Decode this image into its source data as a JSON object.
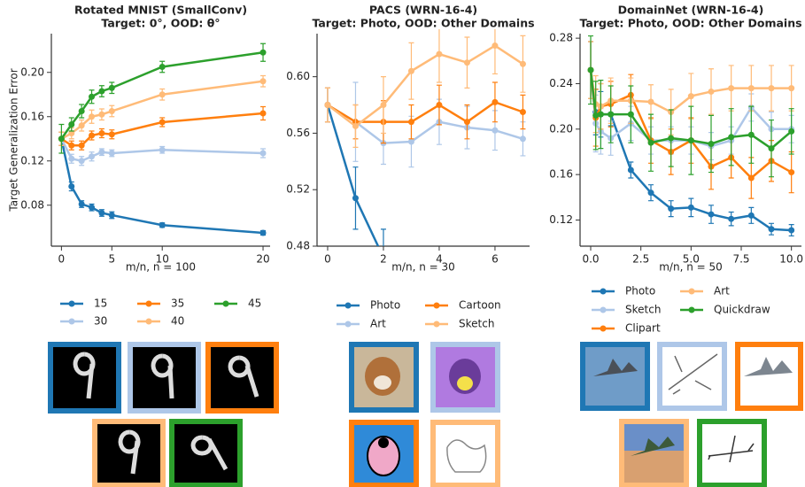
{
  "chart_data": [
    {
      "type": "line",
      "title": "Rotated MNIST (SmallConv)",
      "subtitle": "Target: 0°, OOD: θ°",
      "xlabel": "m/n, n = 100",
      "ylabel": "Target Generalization Error",
      "x": [
        0,
        1,
        2,
        3,
        4,
        5,
        10,
        20
      ],
      "xlim": [
        -1,
        20.7
      ],
      "xticks": [
        0,
        5,
        10,
        20
      ],
      "ylim": [
        0.043,
        0.235
      ],
      "yticks": [
        0.08,
        0.12,
        0.16,
        {
          "value": 0.2,
          "label": "0.20"
        }
      ],
      "legend_ncol": 3,
      "series": [
        {
          "name": "15",
          "color": "#1f77b4",
          "values": [
            0.14,
            0.097,
            0.081,
            0.078,
            0.073,
            0.071,
            0.062,
            0.055
          ],
          "errors": [
            0.006,
            0.004,
            0.003,
            0.003,
            0.003,
            0.003,
            0.002,
            0.002
          ]
        },
        {
          "name": "30",
          "color": "#aec7e8",
          "values": [
            0.14,
            0.122,
            0.12,
            0.124,
            0.128,
            0.127,
            0.13,
            0.127
          ],
          "errors": [
            0.006,
            0.004,
            0.004,
            0.004,
            0.003,
            0.003,
            0.003,
            0.004
          ]
        },
        {
          "name": "35",
          "color": "#ff7f0e",
          "values": [
            0.14,
            0.134,
            0.134,
            0.143,
            0.145,
            0.144,
            0.155,
            0.163
          ],
          "errors": [
            0.006,
            0.004,
            0.004,
            0.004,
            0.004,
            0.004,
            0.004,
            0.006
          ]
        },
        {
          "name": "40",
          "color": "#ffbb78",
          "values": [
            0.14,
            0.145,
            0.152,
            0.16,
            0.162,
            0.165,
            0.18,
            0.192
          ],
          "errors": [
            0.006,
            0.005,
            0.005,
            0.006,
            0.005,
            0.005,
            0.005,
            0.005
          ]
        },
        {
          "name": "45",
          "color": "#2ca02c",
          "values": [
            0.14,
            0.153,
            0.165,
            0.178,
            0.183,
            0.186,
            0.205,
            0.218
          ],
          "errors": [
            0.013,
            0.006,
            0.006,
            0.006,
            0.005,
            0.005,
            0.005,
            0.008
          ]
        }
      ]
    },
    {
      "type": "line",
      "title": "PACS (WRN-16-4)",
      "subtitle": "Target: Photo, OOD: Other Domains",
      "xlabel": "m/n, n = 30",
      "x": [
        0,
        1,
        2,
        3,
        4,
        5,
        6,
        7
      ],
      "xlim": [
        -0.38,
        7.24
      ],
      "xticks": [
        0,
        2,
        4,
        6
      ],
      "ylim": [
        0.48,
        0.6305
      ],
      "yticks": [
        0.48,
        0.52,
        0.56,
        {
          "value": 0.6,
          "label": "0.60"
        }
      ],
      "legend_ncol": 2,
      "series": [
        {
          "name": "Photo",
          "color": "#1f77b4",
          "values": [
            0.58,
            0.514,
            0.472,
            null,
            null,
            null,
            null,
            null
          ],
          "errors": [
            0.012,
            0.022,
            0.02,
            null,
            null,
            null,
            null,
            null
          ]
        },
        {
          "name": "Art",
          "color": "#aec7e8",
          "values": [
            0.58,
            0.568,
            0.553,
            0.554,
            0.568,
            0.564,
            0.562,
            0.556
          ],
          "errors": [
            0.012,
            0.028,
            0.015,
            0.018,
            0.016,
            0.015,
            0.014,
            0.012
          ]
        },
        {
          "name": "Cartoon",
          "color": "#ff7f0e",
          "values": [
            0.58,
            0.568,
            0.568,
            0.568,
            0.58,
            0.568,
            0.582,
            0.575
          ],
          "errors": [
            0.012,
            0.012,
            0.015,
            0.012,
            0.014,
            0.012,
            0.014,
            0.012
          ]
        },
        {
          "name": "Sketch",
          "color": "#ffbb78",
          "values": [
            0.58,
            0.565,
            0.58,
            0.604,
            0.616,
            0.61,
            0.622,
            0.609
          ],
          "errors": [
            0.012,
            0.015,
            0.02,
            0.02,
            0.02,
            0.018,
            0.02,
            0.02
          ]
        }
      ]
    },
    {
      "type": "line",
      "title": "DomainNet (WRN-16-4)",
      "subtitle": "Target: Photo, OOD: Other Domains",
      "xlabel": "m/n, n = 50",
      "x": [
        0,
        0.25,
        0.5,
        1,
        2,
        3,
        4,
        5,
        6,
        7,
        8,
        9,
        10
      ],
      "xlim": [
        -0.53,
        10.5
      ],
      "xticks": [
        {
          "value": 0,
          "label": "0.0"
        },
        2.5,
        {
          "value": 5,
          "label": "5.0"
        },
        7.5,
        {
          "value": 10,
          "label": "10.0"
        }
      ],
      "ylim": [
        0.097,
        0.284
      ],
      "yticks": [
        0.12,
        0.16,
        {
          "value": 0.2,
          "label": "0.20"
        },
        0.24,
        0.28
      ],
      "legend_ncol": 2,
      "series": [
        {
          "name": "Photo",
          "color": "#1f77b4",
          "values": [
            0.252,
            0.215,
            0.213,
            0.213,
            0.164,
            0.144,
            0.13,
            0.131,
            0.125,
            0.121,
            0.124,
            0.112,
            0.111
          ],
          "errors": [
            0.025,
            0.02,
            0.02,
            0.01,
            0.007,
            0.007,
            0.007,
            0.008,
            0.008,
            0.006,
            0.007,
            0.005,
            0.005
          ]
        },
        {
          "name": "Sketch",
          "color": "#aec7e8",
          "values": [
            0.252,
            0.205,
            0.198,
            0.192,
            0.205,
            0.19,
            0.19,
            0.19,
            0.185,
            0.19,
            0.219,
            0.2,
            0.2
          ],
          "errors": [
            0.025,
            0.025,
            0.02,
            0.015,
            0.015,
            0.012,
            0.012,
            0.012,
            0.012,
            0.012,
            0.012,
            0.015,
            0.012
          ]
        },
        {
          "name": "Clipart",
          "color": "#ff7f0e",
          "values": [
            0.252,
            0.21,
            0.22,
            0.222,
            0.23,
            0.19,
            0.18,
            0.19,
            0.167,
            0.175,
            0.157,
            0.172,
            0.162
          ],
          "errors": [
            0.025,
            0.025,
            0.02,
            0.02,
            0.018,
            0.02,
            0.02,
            0.02,
            0.02,
            0.018,
            0.018,
            0.018,
            0.018
          ]
        },
        {
          "name": "Art",
          "color": "#ffbb78",
          "values": [
            0.252,
            0.222,
            0.22,
            0.225,
            0.225,
            0.224,
            0.215,
            0.229,
            0.233,
            0.236,
            0.236,
            0.236,
            0.236
          ],
          "errors": [
            0.025,
            0.025,
            0.02,
            0.02,
            0.02,
            0.015,
            0.02,
            0.02,
            0.02,
            0.02,
            0.02,
            0.02,
            0.02
          ]
        },
        {
          "name": "Quickdraw",
          "color": "#2ca02c",
          "values": [
            0.252,
            0.212,
            0.213,
            0.213,
            0.213,
            0.188,
            0.192,
            0.19,
            0.187,
            0.193,
            0.195,
            0.183,
            0.198
          ],
          "errors": [
            0.03,
            0.03,
            0.03,
            0.025,
            0.025,
            0.025,
            0.025,
            0.03,
            0.025,
            0.025,
            0.025,
            0.025,
            0.02
          ]
        }
      ]
    }
  ]
}
